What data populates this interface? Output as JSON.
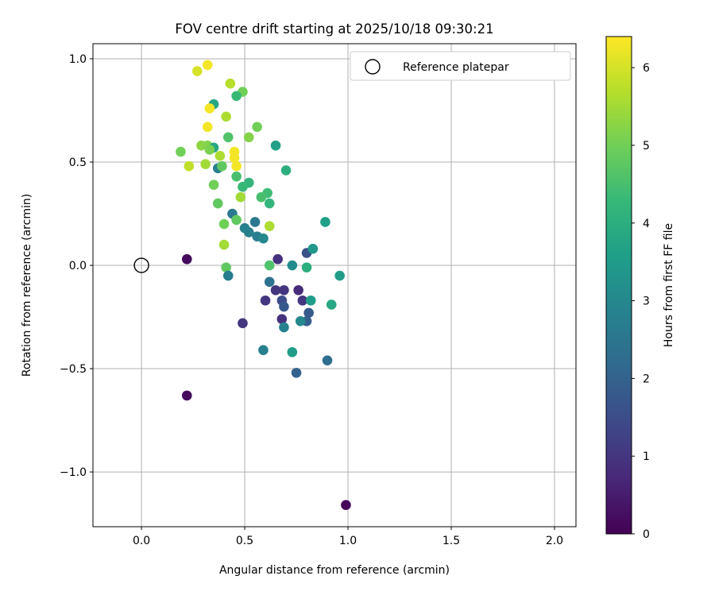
{
  "chart_data": {
    "type": "scatter",
    "title": "FOV centre drift starting at 2025/10/18 09:30:21",
    "xlabel": "Angular distance from reference (arcmin)",
    "ylabel": "Rotation from reference (arcmin)",
    "xlim": [
      -0.235,
      2.104
    ],
    "ylim": [
      -1.265,
      1.073
    ],
    "xticks": [
      0.0,
      0.5,
      1.0,
      1.5,
      2.0
    ],
    "xtick_labels": [
      "0.0",
      "0.5",
      "1.0",
      "1.5",
      "2.0"
    ],
    "yticks": [
      1.0,
      0.5,
      0.0,
      -0.5,
      -1.0
    ],
    "ytick_labels": [
      "1.0",
      "0.5",
      "0.0",
      "−0.5",
      "−1.0"
    ],
    "grid": true,
    "legend": {
      "placement": "top-right",
      "entries": [
        "Reference platepar"
      ]
    },
    "reference_point": {
      "x": 0.0,
      "y": 0.0
    },
    "colorbar": {
      "label": "Hours from first FF file",
      "colormap": "viridis",
      "range": [
        0,
        6.4
      ],
      "ticks": [
        0,
        1,
        2,
        3,
        4,
        5,
        6
      ],
      "tick_labels": [
        "0",
        "1",
        "2",
        "3",
        "4",
        "5",
        "6"
      ]
    },
    "points": [
      [
        0.32,
        0.97,
        6.3
      ],
      [
        0.27,
        0.94,
        6.0
      ],
      [
        0.43,
        0.88,
        5.7
      ],
      [
        0.49,
        0.84,
        5.0
      ],
      [
        0.46,
        0.82,
        4.3
      ],
      [
        0.35,
        0.78,
        3.8
      ],
      [
        0.33,
        0.76,
        6.3
      ],
      [
        0.41,
        0.72,
        5.6
      ],
      [
        0.56,
        0.67,
        5.0
      ],
      [
        0.32,
        0.67,
        6.3
      ],
      [
        0.42,
        0.62,
        4.6
      ],
      [
        0.52,
        0.62,
        5.2
      ],
      [
        0.65,
        0.58,
        3.6
      ],
      [
        0.19,
        0.55,
        5.0
      ],
      [
        0.29,
        0.58,
        5.3
      ],
      [
        0.32,
        0.58,
        5.2
      ],
      [
        0.35,
        0.57,
        3.8
      ],
      [
        0.33,
        0.56,
        5.1
      ],
      [
        0.38,
        0.53,
        5.6
      ],
      [
        0.45,
        0.55,
        6.3
      ],
      [
        0.45,
        0.52,
        6.3
      ],
      [
        0.46,
        0.48,
        6.3
      ],
      [
        0.23,
        0.48,
        5.8
      ],
      [
        0.31,
        0.49,
        5.5
      ],
      [
        0.37,
        0.47,
        2.8
      ],
      [
        0.39,
        0.48,
        4.8
      ],
      [
        0.7,
        0.46,
        4.0
      ],
      [
        0.46,
        0.43,
        4.5
      ],
      [
        0.52,
        0.4,
        4.2
      ],
      [
        0.49,
        0.38,
        4.3
      ],
      [
        0.35,
        0.39,
        5.0
      ],
      [
        0.61,
        0.35,
        4.4
      ],
      [
        0.58,
        0.33,
        4.5
      ],
      [
        0.48,
        0.33,
        5.5
      ],
      [
        0.62,
        0.3,
        4.2
      ],
      [
        0.37,
        0.3,
        4.8
      ],
      [
        0.44,
        0.25,
        2.6
      ],
      [
        0.55,
        0.21,
        2.6
      ],
      [
        0.4,
        0.2,
        5.0
      ],
      [
        0.46,
        0.22,
        4.8
      ],
      [
        0.62,
        0.19,
        5.6
      ],
      [
        0.89,
        0.21,
        3.6
      ],
      [
        0.5,
        0.18,
        2.8
      ],
      [
        0.52,
        0.16,
        2.8
      ],
      [
        0.56,
        0.14,
        2.7
      ],
      [
        0.59,
        0.13,
        3.0
      ],
      [
        0.4,
        0.1,
        5.5
      ],
      [
        0.8,
        0.06,
        1.6
      ],
      [
        0.83,
        0.08,
        3.4
      ],
      [
        0.66,
        0.03,
        0.9
      ],
      [
        0.62,
        0.0,
        4.6
      ],
      [
        0.73,
        0.0,
        3.1
      ],
      [
        0.8,
        -0.01,
        4.0
      ],
      [
        0.96,
        -0.05,
        3.5
      ],
      [
        0.41,
        -0.01,
        4.8
      ],
      [
        0.42,
        -0.05,
        2.7
      ],
      [
        0.62,
        -0.08,
        2.4
      ],
      [
        0.65,
        -0.12,
        1.0
      ],
      [
        0.69,
        -0.12,
        1.0
      ],
      [
        0.76,
        -0.12,
        0.8
      ],
      [
        0.6,
        -0.17,
        1.0
      ],
      [
        0.68,
        -0.17,
        1.5
      ],
      [
        0.78,
        -0.17,
        1.0
      ],
      [
        0.82,
        -0.17,
        3.5
      ],
      [
        0.92,
        -0.19,
        3.8
      ],
      [
        0.69,
        -0.2,
        1.8
      ],
      [
        0.81,
        -0.23,
        1.8
      ],
      [
        0.68,
        -0.26,
        0.9
      ],
      [
        0.8,
        -0.27,
        1.9
      ],
      [
        0.77,
        -0.27,
        3.0
      ],
      [
        0.69,
        -0.3,
        2.8
      ],
      [
        0.49,
        -0.28,
        1.0
      ],
      [
        0.59,
        -0.41,
        2.8
      ],
      [
        0.73,
        -0.42,
        3.5
      ],
      [
        0.9,
        -0.46,
        2.3
      ],
      [
        0.75,
        -0.52,
        2.0
      ],
      [
        0.22,
        0.03,
        0.2
      ],
      [
        0.22,
        -0.63,
        0.2
      ],
      [
        0.99,
        -1.16,
        0.1
      ]
    ]
  }
}
